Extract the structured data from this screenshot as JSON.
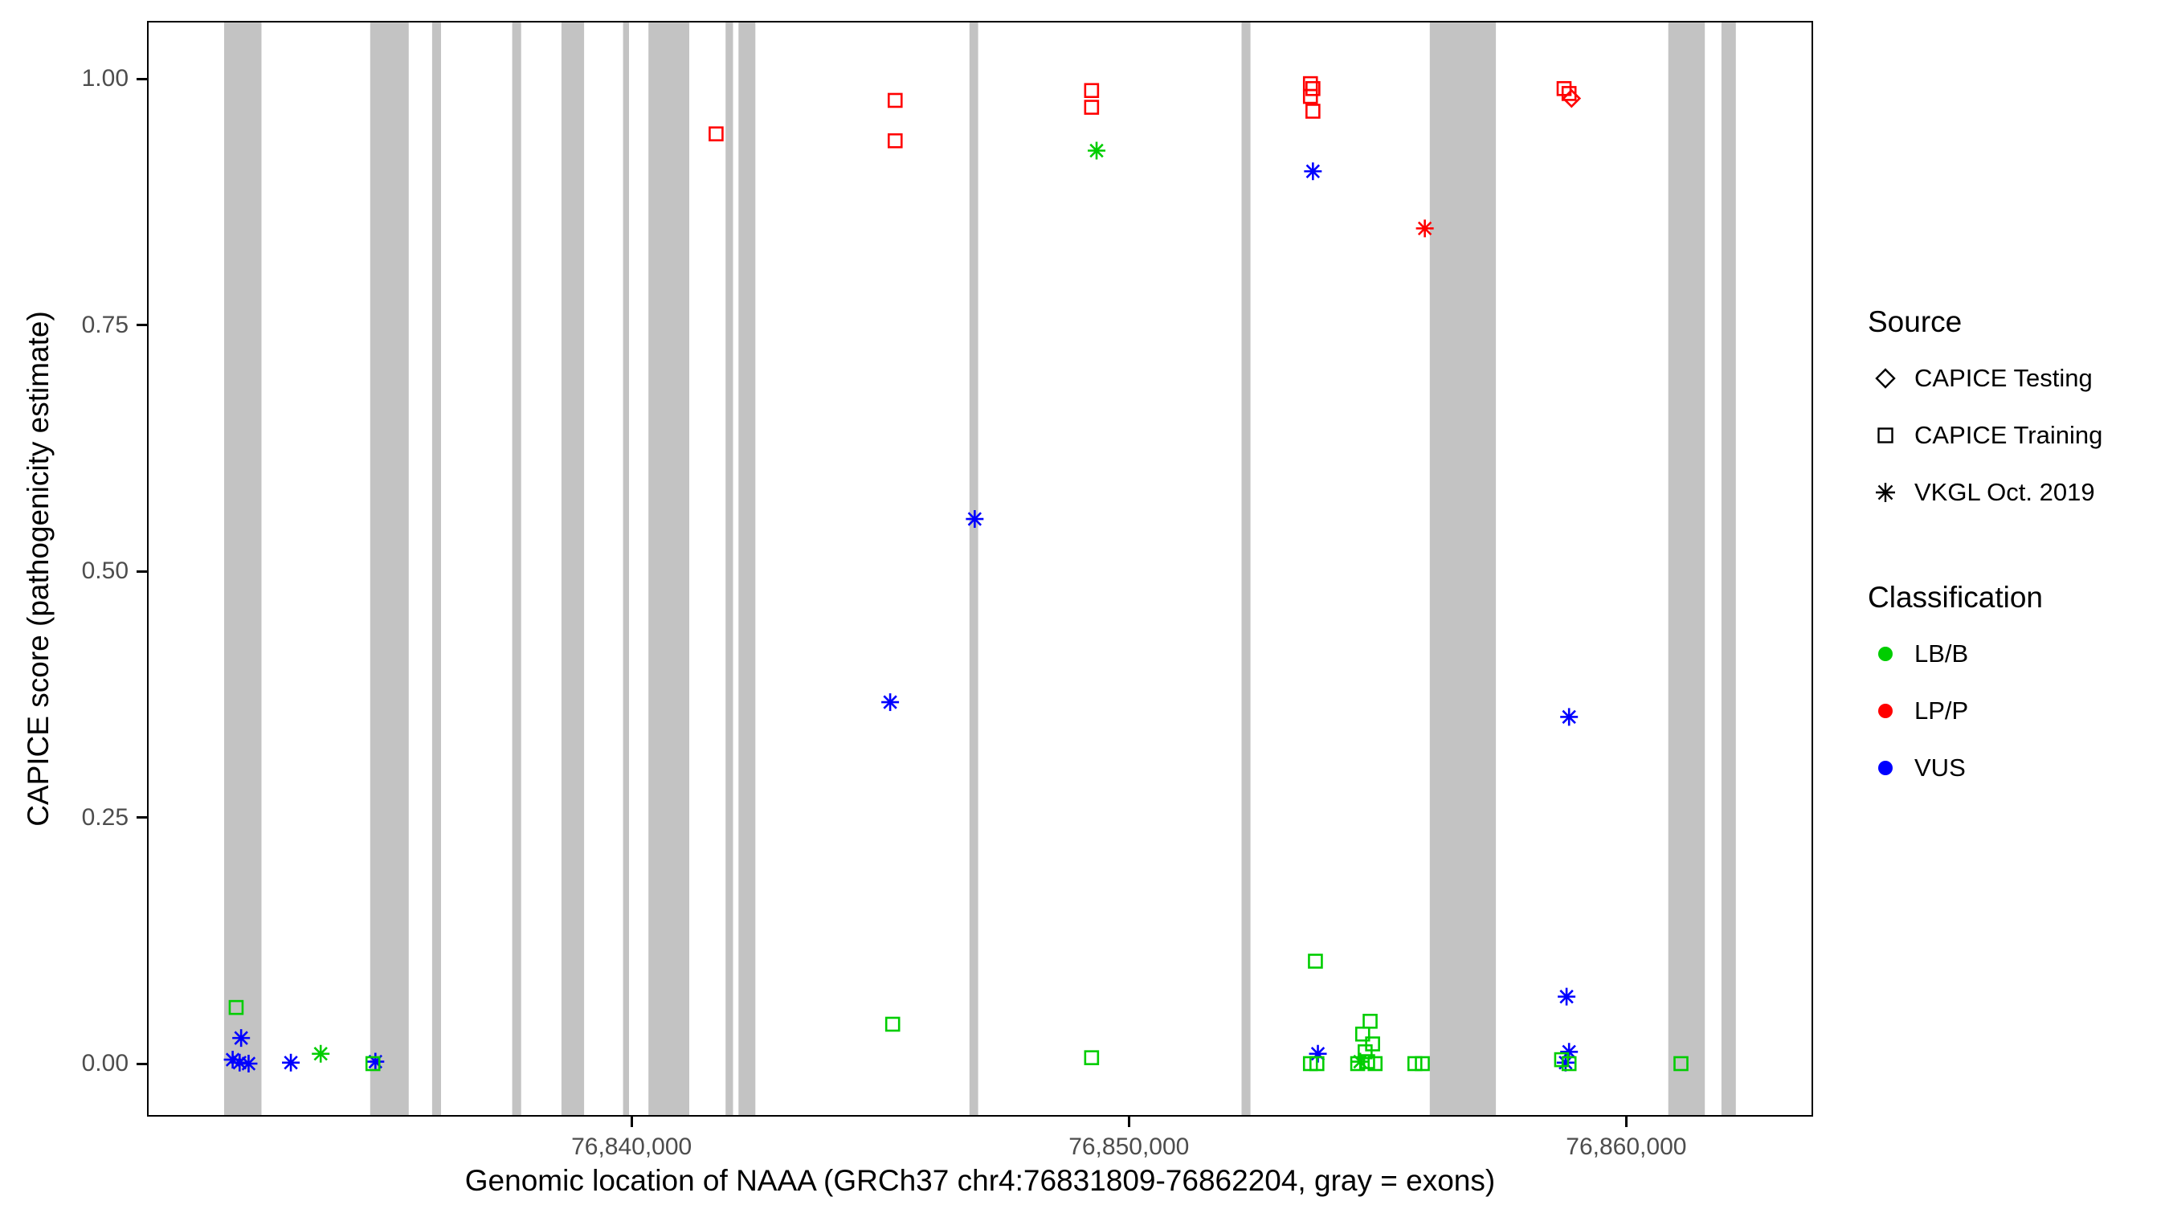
{
  "figure": {
    "y_axis_title": "CAPICE score (pathogenicity estimate)",
    "x_axis_title": "Genomic location of NAAA (GRCh37 chr4:76831809-76862204, gray = exons)"
  },
  "legend": {
    "source": {
      "title": "Source",
      "items": [
        {
          "label": "CAPICE Testing",
          "marker": "diamond"
        },
        {
          "label": "CAPICE Training",
          "marker": "square"
        },
        {
          "label": "VKGL Oct. 2019",
          "marker": "asterisk"
        }
      ]
    },
    "classification": {
      "title": "Classification",
      "items": [
        {
          "label": "LB/B",
          "color": "#00CD00"
        },
        {
          "label": "LP/P",
          "color": "#FF0000"
        },
        {
          "label": "VUS",
          "color": "#0000FF"
        }
      ]
    }
  },
  "colors": {
    "exon": "#C3C3C3",
    "classes": {
      "LB/B": "#00CD00",
      "LP/P": "#FF0000",
      "VUS": "#0000FF"
    },
    "tick_label": "#4D4D4D",
    "axis_title": "#000000",
    "panel_border": "#000000"
  },
  "chart_data": {
    "type": "scatter",
    "title": "",
    "xlabel": "Genomic location of NAAA (GRCh37 chr4:76831809-76862204, gray = exons)",
    "ylabel": "CAPICE score (pathogenicity estimate)",
    "xlim": [
      76830290,
      76863725
    ],
    "ylim": [
      0,
      1
    ],
    "grid": "off",
    "legend_position": "right",
    "x_ticks": [
      {
        "value": 76840000,
        "label": "76,840,000"
      },
      {
        "value": 76850000,
        "label": "76,850,000"
      },
      {
        "value": 76860000,
        "label": "76,860,000"
      }
    ],
    "y_ticks": [
      {
        "value": 1.0,
        "label": "1.00"
      },
      {
        "value": 0.75,
        "label": "0.75"
      },
      {
        "value": 0.5,
        "label": "0.50"
      },
      {
        "value": 0.25,
        "label": "0.25"
      },
      {
        "value": 0.0,
        "label": "0.00"
      }
    ],
    "exons": [
      [
        76831809,
        76832560
      ],
      [
        76834745,
        76835520
      ],
      [
        76835990,
        76836170
      ],
      [
        76837600,
        76837780
      ],
      [
        76838590,
        76839045
      ],
      [
        76839830,
        76839950
      ],
      [
        76840340,
        76841160
      ],
      [
        76841890,
        76842040
      ],
      [
        76842150,
        76842490
      ],
      [
        76846795,
        76846970
      ],
      [
        76852265,
        76852445
      ],
      [
        76856050,
        76857380
      ],
      [
        76860845,
        76861580
      ],
      [
        76861915,
        76862204
      ]
    ],
    "marker_by_source": {
      "CAPICE Testing": "diamond",
      "CAPICE Training": "square",
      "VKGL Oct. 2019": "asterisk"
    },
    "points": [
      {
        "x": 76832050,
        "y": 0.057,
        "source": "CAPICE Training",
        "class": "LB/B"
      },
      {
        "x": 76832150,
        "y": 0.026,
        "source": "VKGL Oct. 2019",
        "class": "VUS"
      },
      {
        "x": 76831980,
        "y": 0.004,
        "source": "VKGL Oct. 2019",
        "class": "VUS"
      },
      {
        "x": 76832120,
        "y": 0.001,
        "source": "VKGL Oct. 2019",
        "class": "VUS"
      },
      {
        "x": 76832300,
        "y": 0.0,
        "source": "VKGL Oct. 2019",
        "class": "VUS"
      },
      {
        "x": 76833150,
        "y": 0.001,
        "source": "VKGL Oct. 2019",
        "class": "VUS"
      },
      {
        "x": 76833750,
        "y": 0.01,
        "source": "VKGL Oct. 2019",
        "class": "LB/B"
      },
      {
        "x": 76834850,
        "y": 0.002,
        "source": "VKGL Oct. 2019",
        "class": "VUS"
      },
      {
        "x": 76834800,
        "y": 0.0,
        "source": "CAPICE Training",
        "class": "LB/B"
      },
      {
        "x": 76841700,
        "y": 0.944,
        "source": "CAPICE Training",
        "class": "LP/P"
      },
      {
        "x": 76845300,
        "y": 0.978,
        "source": "CAPICE Training",
        "class": "LP/P"
      },
      {
        "x": 76845300,
        "y": 0.937,
        "source": "CAPICE Training",
        "class": "LP/P"
      },
      {
        "x": 76845250,
        "y": 0.04,
        "source": "CAPICE Training",
        "class": "LB/B"
      },
      {
        "x": 76845200,
        "y": 0.367,
        "source": "VKGL Oct. 2019",
        "class": "VUS"
      },
      {
        "x": 76846900,
        "y": 0.553,
        "source": "VKGL Oct. 2019",
        "class": "VUS"
      },
      {
        "x": 76849250,
        "y": 0.988,
        "source": "CAPICE Training",
        "class": "LP/P"
      },
      {
        "x": 76849250,
        "y": 0.971,
        "source": "CAPICE Training",
        "class": "LP/P"
      },
      {
        "x": 76849350,
        "y": 0.927,
        "source": "VKGL Oct. 2019",
        "class": "LB/B"
      },
      {
        "x": 76849250,
        "y": 0.006,
        "source": "CAPICE Training",
        "class": "LB/B"
      },
      {
        "x": 76853650,
        "y": 0.995,
        "source": "CAPICE Training",
        "class": "LP/P"
      },
      {
        "x": 76853700,
        "y": 0.99,
        "source": "CAPICE Training",
        "class": "LP/P"
      },
      {
        "x": 76853650,
        "y": 0.982,
        "source": "CAPICE Training",
        "class": "LP/P"
      },
      {
        "x": 76853700,
        "y": 0.967,
        "source": "CAPICE Training",
        "class": "LP/P"
      },
      {
        "x": 76853700,
        "y": 0.906,
        "source": "VKGL Oct. 2019",
        "class": "VUS"
      },
      {
        "x": 76853750,
        "y": 0.104,
        "source": "CAPICE Training",
        "class": "LB/B"
      },
      {
        "x": 76853800,
        "y": 0.01,
        "source": "VKGL Oct. 2019",
        "class": "VUS"
      },
      {
        "x": 76853650,
        "y": 0.0,
        "source": "CAPICE Training",
        "class": "LB/B"
      },
      {
        "x": 76853780,
        "y": 0.0,
        "source": "CAPICE Training",
        "class": "LB/B"
      },
      {
        "x": 76854650,
        "y": 0.002,
        "source": "VKGL Oct. 2019",
        "class": "LB/B"
      },
      {
        "x": 76854700,
        "y": 0.03,
        "source": "CAPICE Training",
        "class": "LB/B"
      },
      {
        "x": 76854850,
        "y": 0.043,
        "source": "CAPICE Training",
        "class": "LB/B"
      },
      {
        "x": 76854900,
        "y": 0.02,
        "source": "CAPICE Training",
        "class": "LB/B"
      },
      {
        "x": 76854750,
        "y": 0.012,
        "source": "CAPICE Training",
        "class": "LB/B"
      },
      {
        "x": 76854800,
        "y": 0.002,
        "source": "CAPICE Training",
        "class": "LB/B"
      },
      {
        "x": 76854600,
        "y": 0.0,
        "source": "CAPICE Training",
        "class": "LB/B"
      },
      {
        "x": 76854950,
        "y": 0.0,
        "source": "CAPICE Training",
        "class": "LB/B"
      },
      {
        "x": 76855750,
        "y": 0.0,
        "source": "CAPICE Training",
        "class": "LB/B"
      },
      {
        "x": 76855900,
        "y": 0.0,
        "source": "CAPICE Training",
        "class": "LB/B"
      },
      {
        "x": 76855950,
        "y": 0.848,
        "source": "VKGL Oct. 2019",
        "class": "LP/P"
      },
      {
        "x": 76858750,
        "y": 0.99,
        "source": "CAPICE Training",
        "class": "LP/P"
      },
      {
        "x": 76858850,
        "y": 0.985,
        "source": "CAPICE Training",
        "class": "LP/P"
      },
      {
        "x": 76858900,
        "y": 0.98,
        "source": "CAPICE Testing",
        "class": "LP/P"
      },
      {
        "x": 76858850,
        "y": 0.352,
        "source": "VKGL Oct. 2019",
        "class": "VUS"
      },
      {
        "x": 76858800,
        "y": 0.068,
        "source": "VKGL Oct. 2019",
        "class": "VUS"
      },
      {
        "x": 76858850,
        "y": 0.012,
        "source": "VKGL Oct. 2019",
        "class": "VUS"
      },
      {
        "x": 76858780,
        "y": 0.001,
        "source": "VKGL Oct. 2019",
        "class": "VUS"
      },
      {
        "x": 76858700,
        "y": 0.004,
        "source": "CAPICE Training",
        "class": "LB/B"
      },
      {
        "x": 76858850,
        "y": 0.0,
        "source": "CAPICE Training",
        "class": "LB/B"
      },
      {
        "x": 76861100,
        "y": 0.0,
        "source": "CAPICE Training",
        "class": "LB/B"
      }
    ]
  }
}
